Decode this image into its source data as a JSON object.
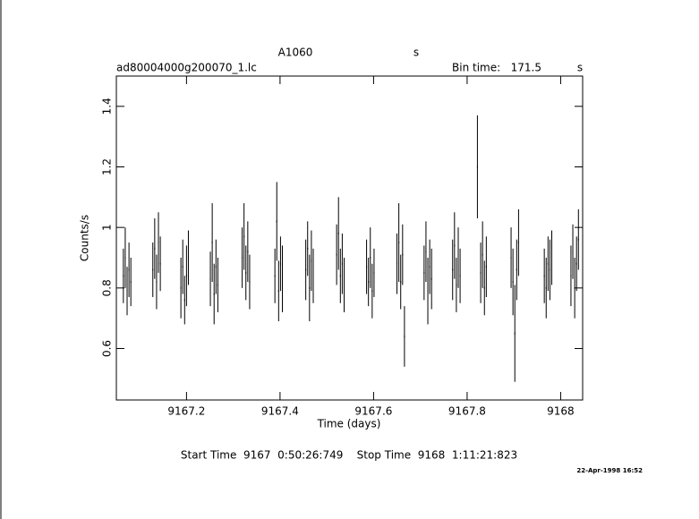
{
  "chart_data": {
    "type": "errorbar",
    "title": "A1060",
    "title_unit": "s",
    "subtitle": "ad80004000g200070_1.lc",
    "bin_label": "Bin time:",
    "bin_value": "171.5",
    "bin_unit": "s",
    "ylabel": "Counts/s",
    "xlabel": "Time (days)",
    "footer": "Start Time  9167  0:50:26:749    Stop Time  9168  1:11:21:823",
    "date": "22-Apr-1998 16:52",
    "color": "#000000",
    "xlim": [
      9167.05,
      9168.047
    ],
    "ylim": [
      0.43,
      1.5
    ],
    "xticks": [
      9167.2,
      9167.4,
      9167.6,
      9167.8,
      9168
    ],
    "yticks": [
      0.6,
      0.8,
      1,
      1.2,
      1.4
    ],
    "x": [
      9167.065,
      9167.069,
      9167.073,
      9167.077,
      9167.081,
      9167.128,
      9167.132,
      9167.136,
      9167.14,
      9167.144,
      9167.188,
      9167.192,
      9167.196,
      9167.2,
      9167.204,
      9167.251,
      9167.255,
      9167.259,
      9167.263,
      9167.267,
      9167.319,
      9167.323,
      9167.327,
      9167.331,
      9167.335,
      9167.389,
      9167.393,
      9167.397,
      9167.401,
      9167.405,
      9167.455,
      9167.459,
      9167.463,
      9167.467,
      9167.471,
      9167.521,
      9167.525,
      9167.529,
      9167.533,
      9167.537,
      9167.585,
      9167.589,
      9167.593,
      9167.597,
      9167.601,
      9167.65,
      9167.654,
      9167.658,
      9167.662,
      9167.666,
      9167.708,
      9167.712,
      9167.716,
      9167.72,
      9167.724,
      9167.769,
      9167.773,
      9167.777,
      9167.781,
      9167.785,
      9167.822,
      9167.829,
      9167.833,
      9167.837,
      9167.841,
      9167.894,
      9167.898,
      9167.902,
      9167.906,
      9167.91,
      9167.965,
      9167.969,
      9167.973,
      9167.977,
      9167.981,
      9168.022,
      9168.026,
      9168.03,
      9168.034,
      9168.038
    ],
    "values": [
      0.84,
      0.9,
      0.79,
      0.86,
      0.82,
      0.86,
      0.93,
      0.82,
      0.95,
      0.88,
      0.8,
      0.87,
      0.76,
      0.84,
      0.9,
      0.83,
      0.95,
      0.78,
      0.87,
      0.81,
      0.9,
      0.97,
      0.85,
      0.92,
      0.82,
      0.84,
      1.02,
      0.79,
      0.88,
      0.83,
      0.86,
      0.93,
      0.8,
      0.89,
      0.84,
      0.91,
      0.98,
      0.84,
      0.88,
      0.81,
      0.87,
      0.82,
      0.9,
      0.79,
      0.85,
      0.88,
      0.95,
      0.82,
      0.91,
      0.64,
      0.85,
      0.92,
      0.79,
      0.87,
      0.83,
      0.86,
      0.94,
      0.81,
      0.9,
      0.84,
      1.2,
      0.85,
      0.91,
      0.8,
      0.87,
      0.9,
      0.82,
      0.65,
      0.86,
      0.95,
      0.84,
      0.8,
      0.88,
      0.86,
      0.9,
      0.84,
      0.92,
      0.8,
      0.88,
      0.96
    ],
    "errors": [
      0.09,
      0.1,
      0.08,
      0.09,
      0.08,
      0.09,
      0.1,
      0.09,
      0.1,
      0.09,
      0.1,
      0.09,
      0.08,
      0.1,
      0.09,
      0.09,
      0.13,
      0.1,
      0.09,
      0.09,
      0.1,
      0.11,
      0.09,
      0.1,
      0.09,
      0.09,
      0.13,
      0.1,
      0.09,
      0.11,
      0.1,
      0.09,
      0.11,
      0.1,
      0.09,
      0.1,
      0.12,
      0.09,
      0.1,
      0.09,
      0.09,
      0.08,
      0.1,
      0.09,
      0.08,
      0.1,
      0.13,
      0.09,
      0.1,
      0.1,
      0.09,
      0.1,
      0.11,
      0.09,
      0.1,
      0.1,
      0.11,
      0.09,
      0.1,
      0.09,
      0.17,
      0.1,
      0.11,
      0.09,
      0.1,
      0.1,
      0.11,
      0.16,
      0.1,
      0.11,
      0.09,
      0.1,
      0.09,
      0.1,
      0.09,
      0.1,
      0.09,
      0.1,
      0.09,
      0.1
    ]
  }
}
